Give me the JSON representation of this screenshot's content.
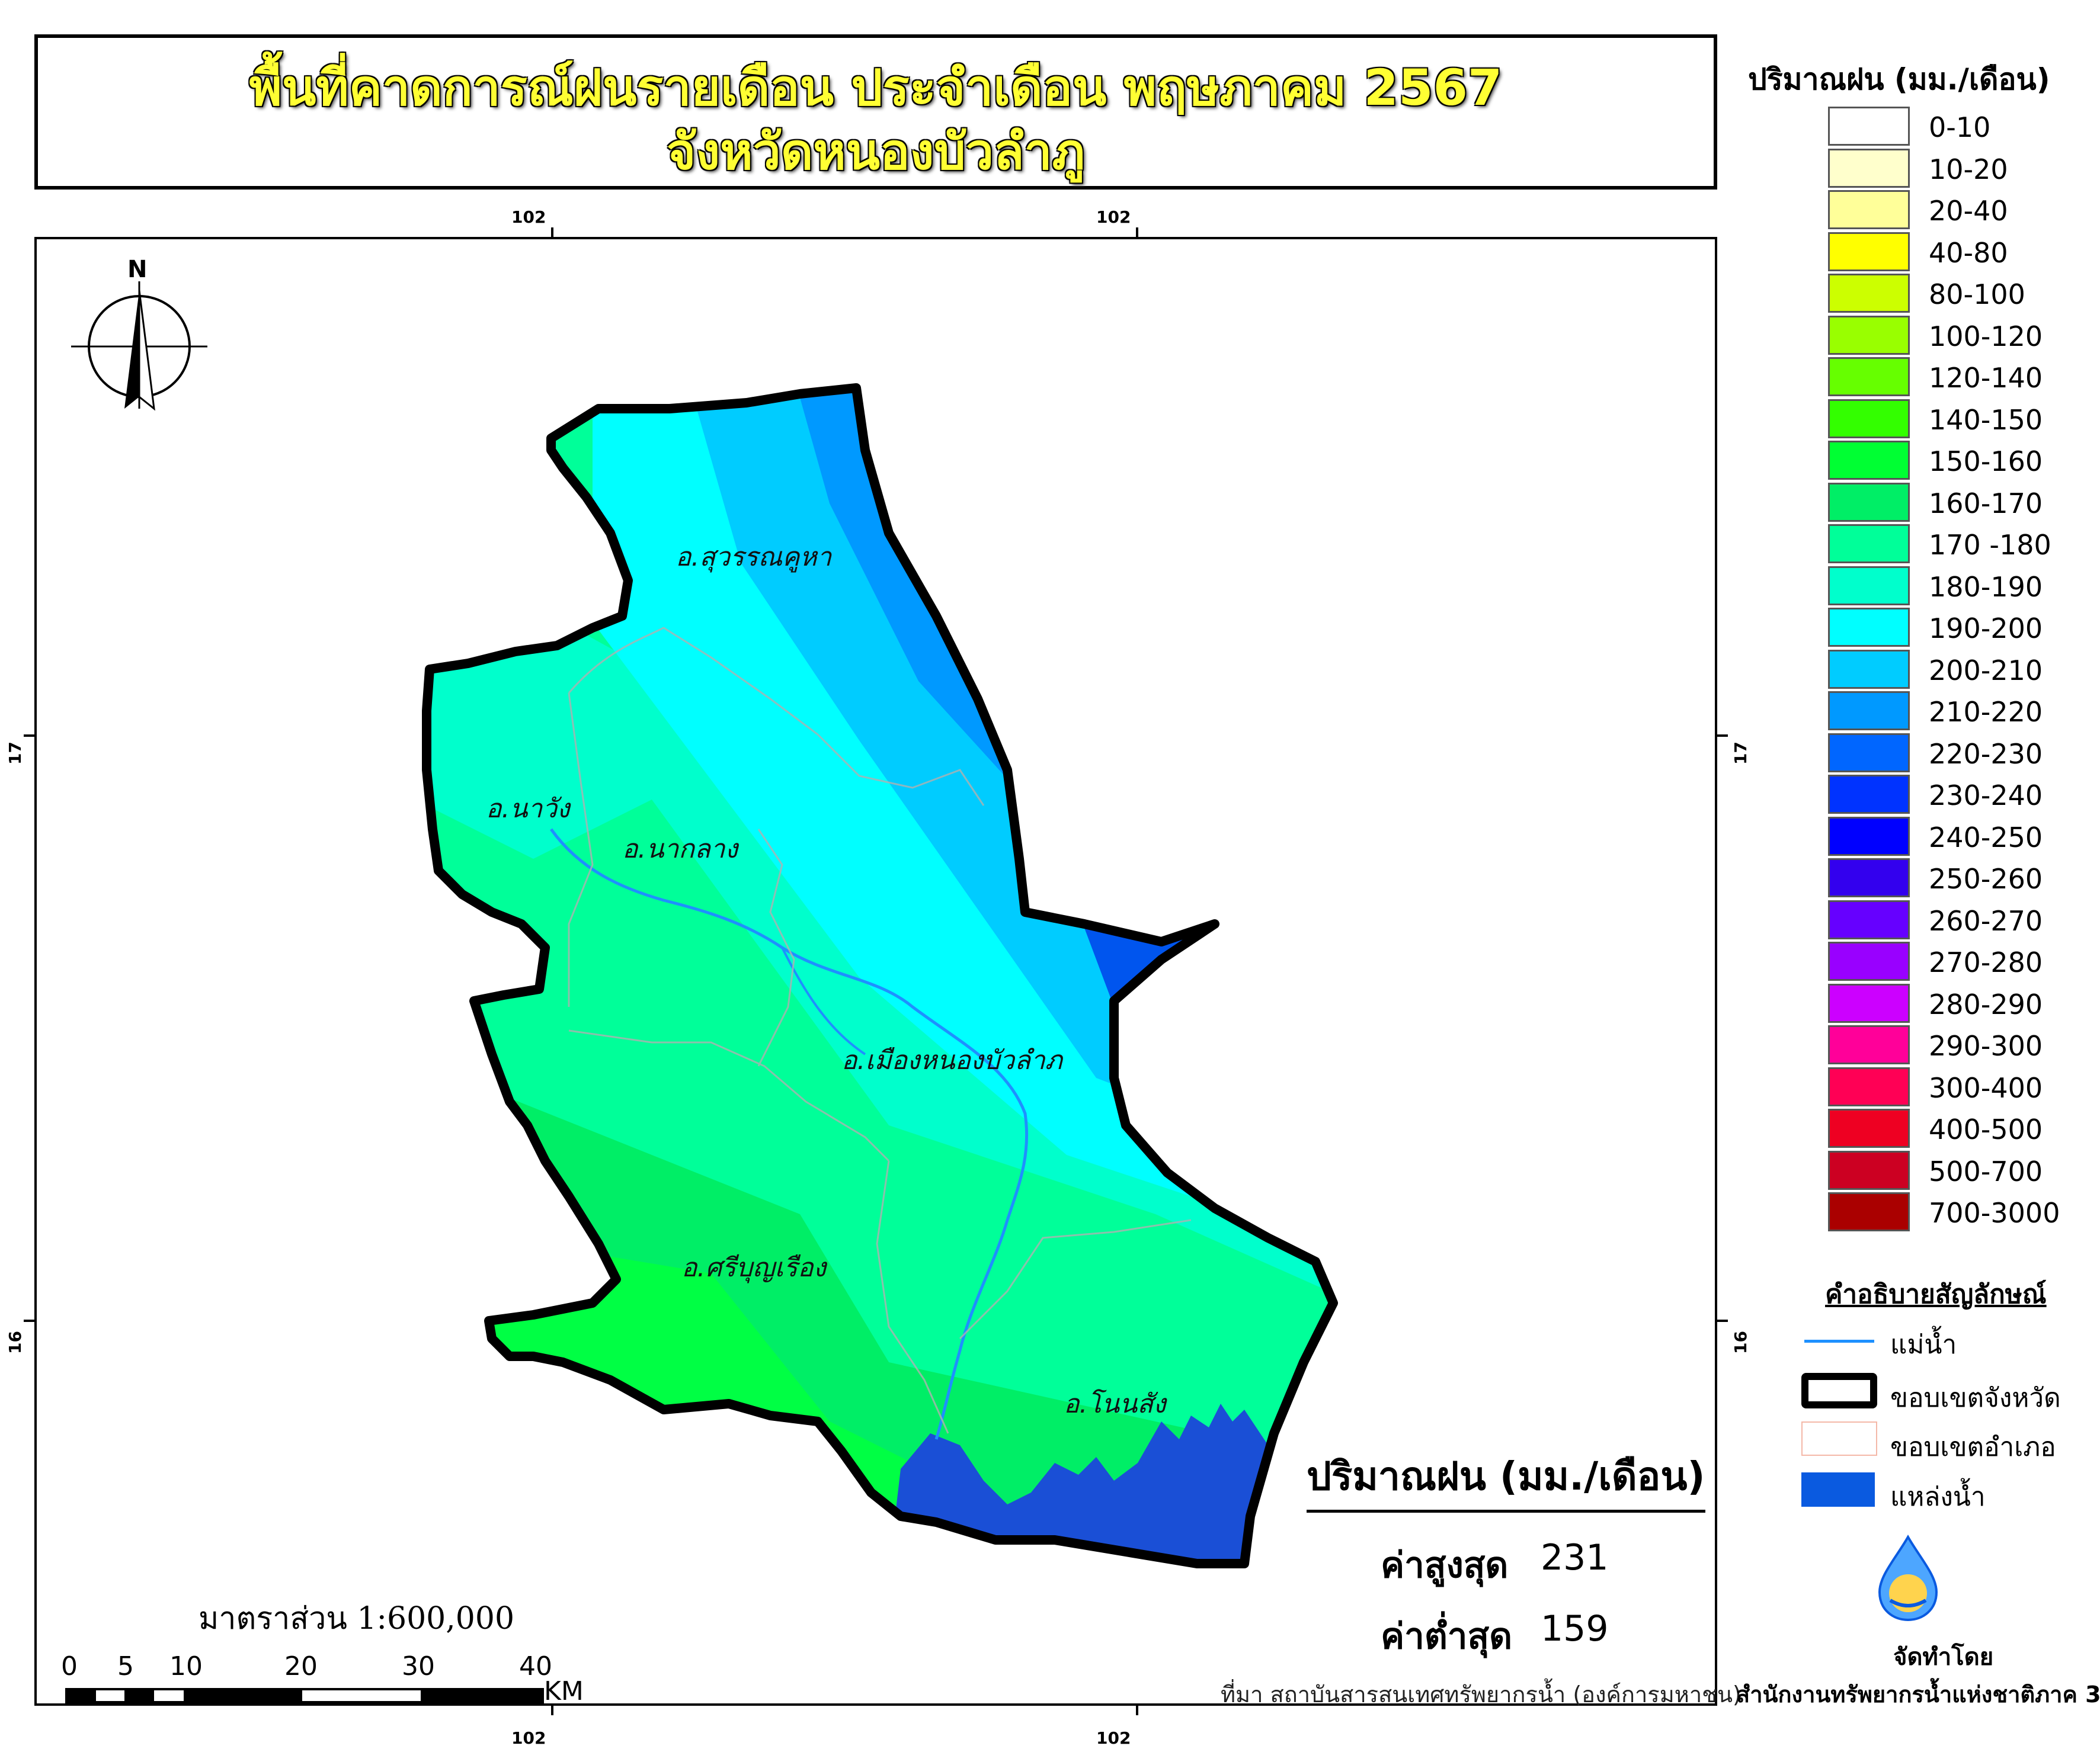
{
  "title": {
    "line1": "พื้นที่คาดการณ์ฝนรายเดือน ประจำเดือน พฤษภาคม 2567",
    "line2": "จังหวัดหนองบัวลำภู"
  },
  "map": {
    "coords": {
      "top_left": "102",
      "top_right": "102",
      "bottom_left": "102",
      "bottom_right": "102",
      "left_upper": "17",
      "left_lower": "16",
      "right_upper": "17",
      "right_lower": "16"
    },
    "north_label": "N",
    "districts": [
      "อ.สุวรรณคูหา",
      "อ.นาวัง",
      "อ.นากลาง",
      "อ.เมืองหนองบัวลำภ",
      "อ.ศรีบุญเรือง",
      "อ.โนนสัง"
    ]
  },
  "legend": {
    "title": "ปริมาณฝน (มม./เดือน)",
    "items": [
      {
        "label": "0-10",
        "color": "#ffffff"
      },
      {
        "label": "10-20",
        "color": "#ffffcc"
      },
      {
        "label": "20-40",
        "color": "#ffff99"
      },
      {
        "label": "40-80",
        "color": "#ffff00"
      },
      {
        "label": "80-100",
        "color": "#ccff00"
      },
      {
        "label": "100-120",
        "color": "#99ff00"
      },
      {
        "label": "120-140",
        "color": "#66ff00"
      },
      {
        "label": "140-150",
        "color": "#33ff00"
      },
      {
        "label": "150-160",
        "color": "#00ff33"
      },
      {
        "label": "160-170",
        "color": "#00ee66"
      },
      {
        "label": "170 -180",
        "color": "#00ff99"
      },
      {
        "label": "180-190",
        "color": "#00ffcc"
      },
      {
        "label": "190-200",
        "color": "#00ffff"
      },
      {
        "label": "200-210",
        "color": "#00ccff"
      },
      {
        "label": "210-220",
        "color": "#0099ff"
      },
      {
        "label": "220-230",
        "color": "#0066ff"
      },
      {
        "label": "230-240",
        "color": "#0033ff"
      },
      {
        "label": "240-250",
        "color": "#0000ff"
      },
      {
        "label": "250-260",
        "color": "#3300ee"
      },
      {
        "label": "260-270",
        "color": "#6600ff"
      },
      {
        "label": "270-280",
        "color": "#9900ff"
      },
      {
        "label": "280-290",
        "color": "#cc00ff"
      },
      {
        "label": "290-300",
        "color": "#ff0099"
      },
      {
        "label": "300-400",
        "color": "#ff0055"
      },
      {
        "label": "400-500",
        "color": "#ee0022"
      },
      {
        "label": "500-700",
        "color": "#cc0022"
      },
      {
        "label": "700-3000",
        "color": "#aa0000"
      }
    ]
  },
  "symbols": {
    "title": "คำอธิบายสัญลักษณ์",
    "river": "แม่น้ำ",
    "province_boundary": "ขอบเขตจังหวัด",
    "district_boundary": "ขอบเขตอำเภอ",
    "water_body": "แหล่งน้ำ"
  },
  "stats": {
    "heading": "ปริมาณฝน (มม./เดือน)",
    "max_label": "ค่าสูงสุด",
    "max_value": "231",
    "min_label": "ค่าต่ำสุด",
    "min_value": "159"
  },
  "scale": {
    "text": "มาตราส่วน 1:600,000",
    "ticks": [
      "0",
      "5",
      "10",
      "20",
      "30",
      "40"
    ],
    "unit": "KM"
  },
  "source": "ที่มา  สถาบันสารสนเทศทรัพยากรน้ำ (องค์การมหาชน)",
  "producer": {
    "label": "จัดทำโดย",
    "name": "สำนักงานทรัพยากรน้ำแห่งชาติภาค 3"
  },
  "colors": {
    "river": "#1e90ff",
    "water_body": "#0a5ae0",
    "province_border": "#000000",
    "district_border": "#f4b8a8"
  }
}
